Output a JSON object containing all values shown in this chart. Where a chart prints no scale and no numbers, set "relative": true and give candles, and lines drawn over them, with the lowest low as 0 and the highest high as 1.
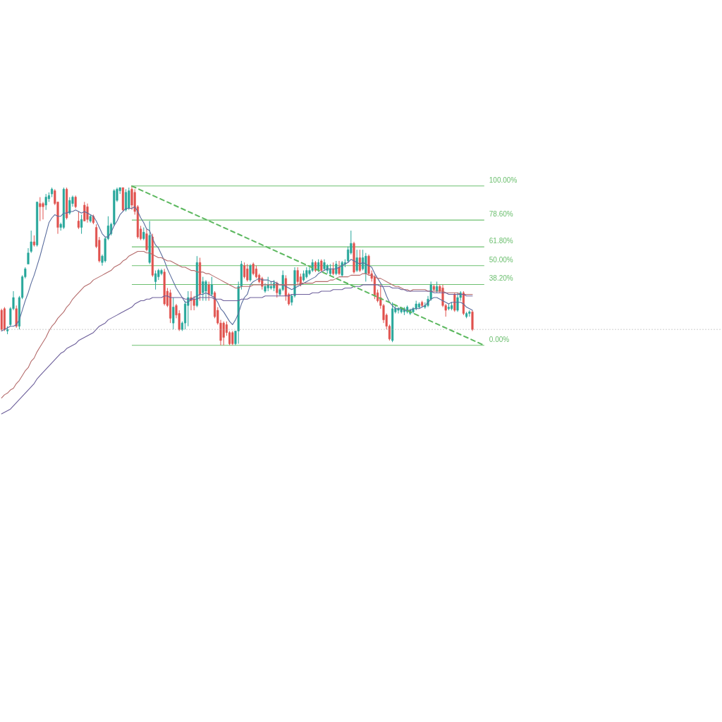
{
  "chart_data": {
    "type": "candlestick",
    "relative": true,
    "grid": false,
    "tick_labels": false,
    "categories": [
      null,
      null,
      null,
      null,
      null,
      null,
      null,
      null,
      null,
      null,
      null,
      null,
      null,
      null,
      null,
      null,
      null,
      null,
      null,
      null,
      null,
      null,
      null,
      null,
      null,
      null,
      null,
      null,
      null,
      null,
      null,
      null,
      null,
      null,
      null,
      null,
      null,
      null,
      null,
      null,
      null,
      null,
      null,
      null,
      null,
      null,
      null,
      null,
      null,
      null,
      null,
      null,
      null,
      null,
      null,
      null,
      null,
      null,
      null,
      null,
      null,
      null,
      null,
      null,
      null,
      null,
      null,
      null,
      null,
      null,
      null,
      null,
      null,
      null,
      null,
      null,
      null,
      null,
      null,
      null,
      null,
      null,
      null,
      null,
      null,
      null,
      null,
      null,
      null,
      null,
      null,
      null,
      null,
      null,
      null,
      null,
      null,
      null,
      null,
      null,
      null,
      null,
      null,
      null,
      null,
      null,
      null,
      null,
      null,
      null,
      null,
      null,
      null,
      null,
      null,
      null,
      null,
      null,
      null,
      null,
      null,
      null,
      null,
      null,
      null,
      null,
      null,
      null,
      null,
      null,
      null,
      null,
      null,
      null,
      null,
      null,
      null,
      null,
      null,
      null,
      null,
      null,
      null,
      null,
      null,
      null,
      null,
      null,
      null,
      null,
      null,
      null,
      null,
      null,
      null,
      null,
      null,
      null,
      null,
      null,
      null,
      null,
      null,
      null
    ],
    "ohlc": [
      [
        0.22,
        0.23,
        0.09,
        0.1
      ],
      [
        0.23,
        0.24,
        0.09,
        0.1
      ],
      [
        0.09,
        0.12,
        0.07,
        0.1
      ],
      [
        0.13,
        0.24,
        0.12,
        0.23
      ],
      [
        0.23,
        0.34,
        0.22,
        0.3
      ],
      [
        0.23,
        0.25,
        0.11,
        0.12
      ],
      [
        0.12,
        0.31,
        0.1,
        0.3
      ],
      [
        0.3,
        0.44,
        0.29,
        0.43
      ],
      [
        0.43,
        0.49,
        0.42,
        0.48
      ],
      [
        0.51,
        0.61,
        0.51,
        0.58
      ],
      [
        0.59,
        0.72,
        0.58,
        0.65
      ],
      [
        0.65,
        0.69,
        0.62,
        0.63
      ],
      [
        0.63,
        0.9,
        0.62,
        0.9
      ],
      [
        0.89,
        0.93,
        0.78,
        0.87
      ],
      [
        0.89,
        0.9,
        0.79,
        0.87
      ],
      [
        0.88,
        0.95,
        0.85,
        0.93
      ],
      [
        0.92,
        0.96,
        0.9,
        0.94
      ],
      [
        0.95,
        0.99,
        0.93,
        0.98
      ],
      [
        0.97,
        0.98,
        0.88,
        0.89
      ],
      [
        0.9,
        0.9,
        0.7,
        0.74
      ],
      [
        0.74,
        0.77,
        0.72,
        0.76
      ],
      [
        0.74,
        0.99,
        0.73,
        0.98
      ],
      [
        0.98,
        0.99,
        0.79,
        0.8
      ],
      [
        0.83,
        0.93,
        0.82,
        0.91
      ],
      [
        0.89,
        0.94,
        0.87,
        0.93
      ],
      [
        0.93,
        0.94,
        0.86,
        0.87
      ],
      [
        0.78,
        0.84,
        0.73,
        0.74
      ],
      [
        0.74,
        0.82,
        0.7,
        0.79
      ],
      [
        0.88,
        0.9,
        0.78,
        0.78
      ],
      [
        0.87,
        0.89,
        0.77,
        0.79
      ],
      [
        0.78,
        0.82,
        0.77,
        0.81
      ],
      [
        0.81,
        0.82,
        0.76,
        0.77
      ],
      [
        0.74,
        0.76,
        0.61,
        0.62
      ],
      [
        0.66,
        0.68,
        0.52,
        0.53
      ],
      [
        0.52,
        0.57,
        0.5,
        0.56
      ],
      [
        0.53,
        0.68,
        0.52,
        0.67
      ],
      [
        0.67,
        0.81,
        0.66,
        0.75
      ],
      [
        0.7,
        0.77,
        0.69,
        0.76
      ],
      [
        0.76,
        0.98,
        0.75,
        0.97
      ],
      [
        0.91,
        0.99,
        0.9,
        0.98
      ],
      [
        0.97,
        0.99,
        0.95,
        0.99
      ],
      [
        0.99,
        0.99,
        0.84,
        0.85
      ],
      [
        0.85,
        0.98,
        0.84,
        0.96
      ],
      [
        0.86,
        0.99,
        0.85,
        0.97
      ],
      [
        0.98,
        1.0,
        0.85,
        0.88
      ],
      [
        0.96,
        0.98,
        0.82,
        0.84
      ],
      [
        0.87,
        0.88,
        0.67,
        0.68
      ],
      [
        0.73,
        0.75,
        0.66,
        0.67
      ],
      [
        0.67,
        0.74,
        0.66,
        0.71
      ],
      [
        0.7,
        0.73,
        0.59,
        0.6
      ],
      [
        0.52,
        0.78,
        0.51,
        0.69
      ],
      [
        0.68,
        0.7,
        0.43,
        0.44
      ],
      [
        0.4,
        0.47,
        0.35,
        0.45
      ],
      [
        0.43,
        0.48,
        0.41,
        0.47
      ],
      [
        0.45,
        0.48,
        0.44,
        0.47
      ],
      [
        0.46,
        0.48,
        0.25,
        0.26
      ],
      [
        0.34,
        0.36,
        0.24,
        0.25
      ],
      [
        0.33,
        0.35,
        0.14,
        0.17
      ],
      [
        0.14,
        0.3,
        0.1,
        0.24
      ],
      [
        0.25,
        0.26,
        0.17,
        0.19
      ],
      [
        0.2,
        0.22,
        0.09,
        0.1
      ],
      [
        0.1,
        0.15,
        0.09,
        0.14
      ],
      [
        0.14,
        0.28,
        0.1,
        0.26
      ],
      [
        0.25,
        0.34,
        0.12,
        0.3
      ],
      [
        0.3,
        0.34,
        0.22,
        0.28
      ],
      [
        0.29,
        0.31,
        0.22,
        0.25
      ],
      [
        0.25,
        0.56,
        0.24,
        0.52
      ],
      [
        0.52,
        0.55,
        0.28,
        0.32
      ],
      [
        0.33,
        0.43,
        0.28,
        0.4
      ],
      [
        0.34,
        0.41,
        0.28,
        0.4
      ],
      [
        0.38,
        0.4,
        0.28,
        0.32
      ],
      [
        0.32,
        0.43,
        0.31,
        0.38
      ],
      [
        0.33,
        0.34,
        0.17,
        0.18
      ],
      [
        0.22,
        0.24,
        0.13,
        0.14
      ],
      [
        0.14,
        0.16,
        0.0,
        0.03
      ],
      [
        0.14,
        0.15,
        0.0,
        0.05
      ],
      [
        0.13,
        0.15,
        0.06,
        0.08
      ],
      [
        0.08,
        0.09,
        0.0,
        0.01
      ],
      [
        0.08,
        0.09,
        0.0,
        0.01
      ],
      [
        0.01,
        0.09,
        0.0,
        0.09
      ],
      [
        0.09,
        0.4,
        0.01,
        0.37
      ],
      [
        0.37,
        0.53,
        0.35,
        0.51
      ],
      [
        0.5,
        0.52,
        0.42,
        0.43
      ],
      [
        0.48,
        0.51,
        0.4,
        0.41
      ],
      [
        0.41,
        0.51,
        0.4,
        0.5
      ],
      [
        0.51,
        0.52,
        0.44,
        0.45
      ],
      [
        0.48,
        0.5,
        0.42,
        0.43
      ],
      [
        0.44,
        0.45,
        0.39,
        0.4
      ],
      [
        0.42,
        0.43,
        0.35,
        0.37
      ],
      [
        0.34,
        0.39,
        0.33,
        0.37
      ],
      [
        0.36,
        0.43,
        0.34,
        0.38
      ],
      [
        0.36,
        0.4,
        0.35,
        0.37
      ],
      [
        0.36,
        0.41,
        0.34,
        0.39
      ],
      [
        0.39,
        0.4,
        0.3,
        0.33
      ],
      [
        0.32,
        0.36,
        0.31,
        0.35
      ],
      [
        0.35,
        0.47,
        0.34,
        0.44
      ],
      [
        0.42,
        0.44,
        0.28,
        0.31
      ],
      [
        0.32,
        0.33,
        0.25,
        0.26
      ],
      [
        0.27,
        0.32,
        0.25,
        0.31
      ],
      [
        0.31,
        0.49,
        0.3,
        0.47
      ],
      [
        0.47,
        0.49,
        0.38,
        0.4
      ],
      [
        0.43,
        0.45,
        0.37,
        0.38
      ],
      [
        0.41,
        0.47,
        0.4,
        0.45
      ],
      [
        0.43,
        0.49,
        0.42,
        0.47
      ],
      [
        0.45,
        0.49,
        0.44,
        0.47
      ],
      [
        0.47,
        0.54,
        0.46,
        0.52
      ],
      [
        0.52,
        0.53,
        0.46,
        0.47
      ],
      [
        0.47,
        0.54,
        0.46,
        0.52
      ],
      [
        0.53,
        0.54,
        0.46,
        0.47
      ],
      [
        0.48,
        0.54,
        0.47,
        0.52
      ],
      [
        0.47,
        0.51,
        0.45,
        0.5
      ],
      [
        0.45,
        0.51,
        0.44,
        0.48
      ],
      [
        0.48,
        0.52,
        0.44,
        0.45
      ],
      [
        0.45,
        0.53,
        0.44,
        0.51
      ],
      [
        0.49,
        0.53,
        0.44,
        0.45
      ],
      [
        0.44,
        0.53,
        0.43,
        0.52
      ],
      [
        0.51,
        0.54,
        0.49,
        0.52
      ],
      [
        0.53,
        0.62,
        0.52,
        0.6
      ],
      [
        0.58,
        0.72,
        0.57,
        0.64
      ],
      [
        0.64,
        0.65,
        0.45,
        0.46
      ],
      [
        0.47,
        0.6,
        0.46,
        0.55
      ],
      [
        0.55,
        0.6,
        0.46,
        0.47
      ],
      [
        0.48,
        0.6,
        0.47,
        0.55
      ],
      [
        0.45,
        0.58,
        0.4,
        0.56
      ],
      [
        0.56,
        0.57,
        0.44,
        0.45
      ],
      [
        0.45,
        0.47,
        0.4,
        0.42
      ],
      [
        0.43,
        0.44,
        0.29,
        0.31
      ],
      [
        0.33,
        0.35,
        0.27,
        0.28
      ],
      [
        0.3,
        0.38,
        0.23,
        0.25
      ],
      [
        0.25,
        0.26,
        0.14,
        0.16
      ],
      [
        0.19,
        0.2,
        0.1,
        0.12
      ],
      [
        0.12,
        0.13,
        0.03,
        0.04
      ],
      [
        0.03,
        0.27,
        0.02,
        0.23
      ],
      [
        0.21,
        0.25,
        0.2,
        0.23
      ],
      [
        0.22,
        0.24,
        0.2,
        0.23
      ],
      [
        0.21,
        0.24,
        0.2,
        0.23
      ],
      [
        0.21,
        0.24,
        0.19,
        0.23
      ],
      [
        0.21,
        0.25,
        0.2,
        0.24
      ],
      [
        0.2,
        0.23,
        0.19,
        0.22
      ],
      [
        0.21,
        0.24,
        0.2,
        0.23
      ],
      [
        0.23,
        0.28,
        0.22,
        0.26
      ],
      [
        0.24,
        0.27,
        0.23,
        0.26
      ],
      [
        0.27,
        0.28,
        0.24,
        0.25
      ],
      [
        0.24,
        0.27,
        0.23,
        0.25
      ],
      [
        0.25,
        0.31,
        0.24,
        0.29
      ],
      [
        0.29,
        0.4,
        0.28,
        0.38
      ],
      [
        0.37,
        0.38,
        0.34,
        0.35
      ],
      [
        0.34,
        0.4,
        0.33,
        0.37
      ],
      [
        0.37,
        0.38,
        0.33,
        0.34
      ],
      [
        0.36,
        0.38,
        0.24,
        0.25
      ],
      [
        0.25,
        0.26,
        0.18,
        0.22
      ],
      [
        0.23,
        0.26,
        0.22,
        0.24
      ],
      [
        0.23,
        0.27,
        0.22,
        0.25
      ],
      [
        0.32,
        0.33,
        0.21,
        0.22
      ],
      [
        0.22,
        0.33,
        0.21,
        0.3
      ],
      [
        0.3,
        0.34,
        0.28,
        0.33
      ],
      [
        0.33,
        0.34,
        0.19,
        0.2
      ],
      [
        0.18,
        0.21,
        0.17,
        0.2
      ],
      [
        0.2,
        0.22,
        0.18,
        0.21
      ],
      [
        0.21,
        0.22,
        0.09,
        0.1
      ],
      null,
      null,
      null,
      null
    ],
    "colors": [
      "#e0524e",
      "#e0524e",
      "#26a69a",
      "#26a69a",
      "#26a69a",
      "#e0524e",
      "#26a69a",
      "#26a69a",
      "#26a69a",
      "#26a69a",
      "#26a69a",
      "#e0524e",
      "#26a69a",
      "#e0524e",
      "#e0524e",
      "#26a69a",
      "#26a69a",
      "#26a69a",
      "#e0524e",
      "#e0524e",
      "#26a69a",
      "#26a69a",
      "#e0524e",
      "#26a69a",
      "#26a69a",
      "#e0524e",
      "#e0524e",
      "#26a69a",
      "#e0524e",
      "#e0524e",
      "#26a69a",
      "#e0524e",
      "#e0524e",
      "#e0524e",
      "#26a69a",
      "#26a69a",
      "#26a69a",
      "#26a69a",
      "#26a69a",
      "#26a69a",
      "#26a69a",
      "#e0524e",
      "#26a69a",
      "#26a69a",
      "#e0524e",
      "#e0524e",
      "#e0524e",
      "#e0524e",
      "#26a69a",
      "#e0524e",
      "#26a69a",
      "#e0524e",
      "#26a69a",
      "#26a69a",
      "#26a69a",
      "#e0524e",
      "#e0524e",
      "#e0524e",
      "#26a69a",
      "#e0524e",
      "#e0524e",
      "#26a69a",
      "#26a69a",
      "#26a69a",
      "#e0524e",
      "#e0524e",
      "#26a69a",
      "#e0524e",
      "#26a69a",
      "#26a69a",
      "#e0524e",
      "#26a69a",
      "#e0524e",
      "#e0524e",
      "#e0524e",
      "#e0524e",
      "#e0524e",
      "#e0524e",
      "#e0524e",
      "#26a69a",
      "#26a69a",
      "#26a69a",
      "#e0524e",
      "#e0524e",
      "#26a69a",
      "#e0524e",
      "#e0524e",
      "#e0524e",
      "#e0524e",
      "#26a69a",
      "#26a69a",
      "#26a69a",
      "#26a69a",
      "#e0524e",
      "#26a69a",
      "#26a69a",
      "#e0524e",
      "#e0524e",
      "#26a69a",
      "#26a69a",
      "#e0524e",
      "#e0524e",
      "#26a69a",
      "#26a69a",
      "#26a69a",
      "#26a69a",
      "#e0524e",
      "#26a69a",
      "#e0524e",
      "#26a69a",
      "#26a69a",
      "#26a69a",
      "#e0524e",
      "#26a69a",
      "#e0524e",
      "#26a69a",
      "#26a69a",
      "#26a69a",
      "#26a69a",
      "#e0524e",
      "#26a69a",
      "#e0524e",
      "#26a69a",
      "#26a69a",
      "#e0524e",
      "#e0524e",
      "#e0524e",
      "#e0524e",
      "#e0524e",
      "#e0524e",
      "#e0524e",
      "#e0524e",
      "#26a69a",
      "#26a69a",
      "#26a69a",
      "#26a69a",
      "#26a69a",
      "#26a69a",
      "#26a69a",
      "#26a69a",
      "#26a69a",
      "#26a69a",
      "#e0524e",
      "#26a69a",
      "#26a69a",
      "#26a69a",
      "#e0524e",
      "#26a69a",
      "#e0524e",
      "#e0524e",
      "#e0524e",
      "#26a69a",
      "#26a69a",
      "#e0524e",
      "#26a69a",
      "#26a69a",
      "#e0524e",
      "#26a69a",
      "#26a69a",
      "#e0524e",
      null,
      null,
      null,
      null
    ],
    "series": [
      {
        "type": "line",
        "color": "#5a6d9e",
        "values": [
          0.09,
          0.1,
          0.11,
          0.12,
          0.12,
          0.13,
          0.16,
          0.22,
          0.28,
          0.33,
          0.39,
          0.44,
          0.5,
          0.56,
          0.63,
          0.7,
          0.77,
          0.8,
          0.82,
          0.81,
          0.81,
          0.83,
          0.83,
          0.84,
          0.84,
          0.85,
          0.84,
          0.83,
          0.84,
          0.83,
          0.82,
          0.81,
          0.78,
          0.74,
          0.7,
          0.68,
          0.68,
          0.71,
          0.75,
          0.78,
          0.82,
          0.84,
          0.86,
          0.86,
          0.86,
          0.87,
          0.84,
          0.8,
          0.77,
          0.73,
          0.72,
          0.67,
          0.63,
          0.61,
          0.57,
          0.53,
          0.48,
          0.44,
          0.4,
          0.36,
          0.33,
          0.3,
          0.27,
          0.27,
          0.29,
          0.3,
          0.31,
          0.32,
          0.32,
          0.33,
          0.32,
          0.31,
          0.3,
          0.27,
          0.23,
          0.21,
          0.18,
          0.15,
          0.13,
          0.16,
          0.2,
          0.26,
          0.3,
          0.32,
          0.38,
          0.4,
          0.41,
          0.42,
          0.41,
          0.41,
          0.41,
          0.4,
          0.4,
          0.39,
          0.38,
          0.38,
          0.37,
          0.36,
          0.35,
          0.36,
          0.37,
          0.38,
          0.39,
          0.4,
          0.41,
          0.42,
          0.43,
          0.45,
          0.46,
          0.47,
          0.48,
          0.48,
          0.48,
          0.48,
          0.49,
          0.5,
          0.51,
          0.52,
          0.54,
          0.53,
          0.52,
          0.51,
          0.52,
          0.51,
          0.5,
          0.49,
          0.45,
          0.42,
          0.39,
          0.36,
          0.31,
          0.27,
          0.25,
          0.23,
          0.23,
          0.23,
          0.22,
          0.22,
          0.22,
          0.23,
          0.23,
          0.23,
          0.24,
          0.25,
          0.27,
          0.29,
          0.3,
          0.3,
          0.29,
          0.28,
          0.27,
          0.26,
          0.27,
          0.27,
          0.27,
          0.27,
          0.26,
          0.24,
          0.23,
          0.22,
          null,
          null,
          null,
          null
        ]
      },
      {
        "type": "line",
        "color": "#b46a6a",
        "values": [
          -0.33,
          -0.31,
          -0.3,
          -0.28,
          -0.27,
          -0.24,
          -0.22,
          -0.19,
          -0.16,
          -0.14,
          -0.1,
          -0.08,
          -0.04,
          -0.01,
          0.02,
          0.05,
          0.09,
          0.12,
          0.14,
          0.17,
          0.19,
          0.21,
          0.24,
          0.26,
          0.29,
          0.31,
          0.33,
          0.35,
          0.37,
          0.38,
          0.39,
          0.41,
          0.42,
          0.43,
          0.44,
          0.45,
          0.46,
          0.47,
          0.49,
          0.5,
          0.51,
          0.53,
          0.54,
          0.56,
          0.57,
          0.58,
          0.59,
          0.59,
          0.59,
          0.58,
          0.58,
          0.57,
          0.56,
          0.55,
          0.55,
          0.54,
          0.53,
          0.53,
          0.52,
          0.51,
          0.5,
          0.49,
          0.49,
          0.48,
          0.47,
          0.47,
          0.46,
          0.46,
          0.46,
          0.45,
          0.45,
          0.44,
          0.43,
          0.42,
          0.41,
          0.4,
          0.39,
          0.38,
          0.37,
          0.36,
          0.36,
          0.37,
          0.37,
          0.37,
          0.37,
          0.38,
          0.38,
          0.38,
          0.38,
          0.38,
          0.38,
          0.38,
          0.38,
          0.38,
          0.38,
          0.38,
          0.38,
          0.38,
          0.38,
          0.38,
          0.38,
          0.39,
          0.39,
          0.39,
          0.39,
          0.39,
          0.4,
          0.4,
          0.4,
          0.4,
          0.4,
          0.41,
          0.41,
          0.42,
          0.43,
          0.43,
          0.43,
          0.43,
          0.44,
          0.44,
          0.44,
          0.44,
          0.45,
          0.45,
          0.44,
          0.44,
          0.43,
          0.42,
          0.42,
          0.41,
          0.4,
          0.39,
          0.38,
          0.37,
          0.37,
          0.36,
          0.35,
          0.35,
          0.34,
          0.35,
          0.35,
          0.35,
          0.35,
          0.35,
          0.34,
          0.34,
          0.34,
          0.34,
          0.34,
          0.34,
          0.33,
          0.33,
          0.33,
          0.33,
          0.33,
          0.32,
          0.32,
          0.32,
          0.32,
          0.32,
          null,
          null,
          null,
          null
        ]
      },
      {
        "type": "line",
        "color": "#6c5e9a",
        "values": [
          -0.43,
          -0.42,
          -0.41,
          -0.4,
          -0.38,
          -0.36,
          -0.34,
          -0.32,
          -0.3,
          -0.28,
          -0.26,
          -0.24,
          -0.21,
          -0.19,
          -0.17,
          -0.15,
          -0.13,
          -0.11,
          -0.09,
          -0.07,
          -0.05,
          -0.04,
          -0.02,
          -0.01,
          0.0,
          0.01,
          0.03,
          0.04,
          0.05,
          0.06,
          0.07,
          0.08,
          0.1,
          0.12,
          0.13,
          0.14,
          0.16,
          0.17,
          0.18,
          0.19,
          0.2,
          0.21,
          0.22,
          0.23,
          0.24,
          0.26,
          0.27,
          0.28,
          0.28,
          0.29,
          0.29,
          0.3,
          0.3,
          0.3,
          0.3,
          0.31,
          0.31,
          0.3,
          0.3,
          0.3,
          0.3,
          0.3,
          0.29,
          0.29,
          0.29,
          0.29,
          0.29,
          0.3,
          0.3,
          0.3,
          0.3,
          0.3,
          0.29,
          0.29,
          0.29,
          0.28,
          0.28,
          0.28,
          0.28,
          0.28,
          0.28,
          0.29,
          0.29,
          0.29,
          0.3,
          0.3,
          0.3,
          0.3,
          0.3,
          0.31,
          0.31,
          0.31,
          0.31,
          0.31,
          0.31,
          0.31,
          0.31,
          0.31,
          0.32,
          0.32,
          0.32,
          0.32,
          0.32,
          0.32,
          0.32,
          0.33,
          0.33,
          0.33,
          0.34,
          0.34,
          0.34,
          0.34,
          0.35,
          0.35,
          0.35,
          0.35,
          0.36,
          0.36,
          0.36,
          0.37,
          0.37,
          0.37,
          0.38,
          0.38,
          0.38,
          0.38,
          0.38,
          0.38,
          0.37,
          0.37,
          0.37,
          0.37,
          0.36,
          0.36,
          0.36,
          0.35,
          0.35,
          0.34,
          0.34,
          0.34,
          0.34,
          0.34,
          0.34,
          0.34,
          0.34,
          0.34,
          0.33,
          0.33,
          0.33,
          0.33,
          0.33,
          0.32,
          0.32,
          0.32,
          0.32,
          0.32,
          0.32,
          0.31,
          0.31,
          0.31,
          null,
          null,
          null,
          null
        ]
      },
      {
        "type": "line",
        "color": "#5cb85f",
        "line_style": "dashed",
        "values": [
          null,
          null,
          null,
          null,
          null,
          null,
          null,
          null,
          null,
          null,
          null,
          null,
          null,
          null,
          null,
          null,
          null,
          null,
          null,
          null,
          null,
          null,
          null,
          null,
          null,
          null,
          null,
          null,
          null,
          null,
          null,
          null,
          null,
          null,
          null,
          null,
          null,
          null,
          null,
          null,
          null,
          null,
          null,
          null,
          1,
          null,
          null,
          null,
          null,
          null,
          null,
          null,
          null,
          null,
          null,
          null,
          null,
          null,
          null,
          null,
          null,
          null,
          null,
          null,
          null,
          null,
          null,
          null,
          null,
          null,
          null,
          null,
          null,
          null,
          null,
          null,
          null,
          null,
          null,
          null,
          null,
          null,
          null,
          null,
          null,
          null,
          null,
          null,
          null,
          null,
          null,
          null,
          null,
          null,
          null,
          null,
          null,
          null,
          null,
          null,
          null,
          null,
          null,
          null,
          null,
          null,
          null,
          null,
          null,
          null,
          null,
          null,
          null,
          null,
          null,
          null,
          null,
          null,
          null,
          null,
          null,
          null,
          null,
          null,
          null,
          null,
          null,
          null,
          null,
          null,
          null,
          null,
          null,
          null,
          null,
          null,
          null,
          null,
          null,
          null,
          null,
          null,
          null,
          null,
          null,
          null,
          null,
          null,
          null,
          null,
          null,
          null,
          null,
          null,
          null,
          null,
          null,
          null,
          null,
          null,
          null,
          null,
          null,
          0
        ]
      }
    ],
    "ref_lines": [
      {
        "axis": "y",
        "value": 1,
        "label": "100.00%",
        "color": "#6cbf6f"
      },
      {
        "axis": "y",
        "value": 0.786,
        "label": "78.60%",
        "color": "#6cbf6f"
      },
      {
        "axis": "y",
        "value": 0.618,
        "label": "61.80%",
        "color": "#6cbf6f"
      },
      {
        "axis": "y",
        "value": 0.5,
        "label": "50.00%",
        "color": "#6cbf6f"
      },
      {
        "axis": "y",
        "value": 0.382,
        "label": "38.20%",
        "color": "#6cbf6f"
      },
      {
        "axis": "y",
        "value": 0,
        "label": "0.00%",
        "color": "#6cbf6f"
      },
      {
        "axis": "y",
        "value": 0.1,
        "color": "#9e9e9e",
        "line_style": "dotted"
      }
    ]
  }
}
